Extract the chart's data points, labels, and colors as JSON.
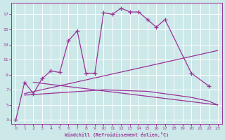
{
  "xlabel": "Windchill (Refroidissement éolien,°C)",
  "background_color": "#cce8e8",
  "line_color": "#993399",
  "grid_color": "#ffffff",
  "xlim": [
    -0.5,
    23.5
  ],
  "ylim": [
    2.5,
    18.5
  ],
  "xticks": [
    0,
    1,
    2,
    3,
    4,
    5,
    6,
    7,
    8,
    9,
    10,
    11,
    12,
    13,
    14,
    15,
    16,
    17,
    18,
    19,
    20,
    21,
    22,
    23
  ],
  "yticks": [
    3,
    5,
    7,
    9,
    11,
    13,
    15,
    17
  ],
  "series_main": {
    "x": [
      0,
      1,
      2,
      3,
      4,
      5,
      6,
      7,
      8,
      9,
      10,
      11,
      12,
      13,
      14,
      15,
      16,
      17,
      20,
      22
    ],
    "y": [
      3.0,
      8.0,
      6.5,
      8.5,
      9.5,
      9.3,
      13.5,
      14.8,
      9.2,
      9.2,
      17.2,
      17.0,
      17.8,
      17.3,
      17.3,
      16.3,
      15.3,
      16.3,
      9.2,
      7.5
    ]
  },
  "series_upper_diag": {
    "x": [
      1,
      23
    ],
    "y": [
      6.5,
      12.2
    ]
  },
  "series_lower_flat": {
    "x": [
      1,
      10,
      15,
      20,
      22,
      23
    ],
    "y": [
      6.3,
      7.0,
      6.8,
      6.0,
      5.5,
      5.0
    ]
  },
  "series_diag2": {
    "x": [
      2,
      23
    ],
    "y": [
      8.0,
      5.0
    ]
  }
}
